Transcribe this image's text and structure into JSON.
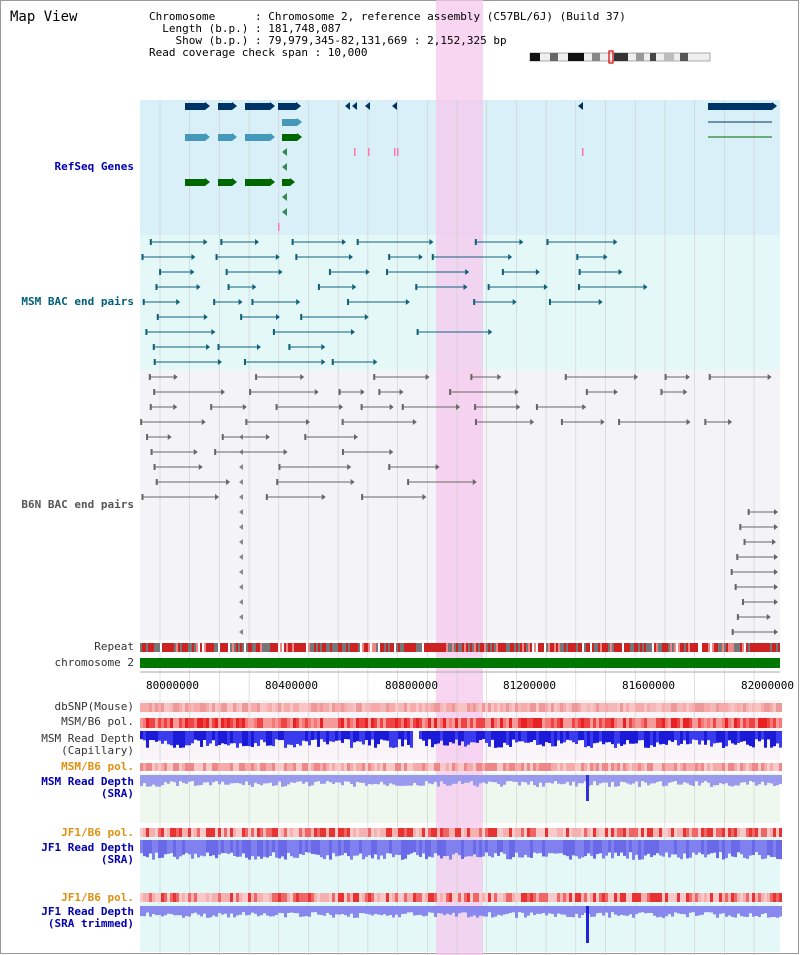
{
  "header": {
    "title": "Map View",
    "info_lines": [
      "Chromosome      : Chromosome 2, reference assembly (C57BL/6J) (Build 37)",
      "  Length (b.p.) : 181,748,087",
      "    Show (b.p.) : 79,979,345-82,131,669 : 2,152,325 bp",
      "Read coverage check span : 10,000"
    ]
  },
  "tracks": {
    "refseq": "RefSeq Genes",
    "msm_bac": "MSM BAC end pairs",
    "b6n_bac": "B6N BAC end pairs",
    "repeat": "Repeat",
    "chromosome": "chromosome 2",
    "dbsnp": "dbSNP(Mouse)",
    "msm_b6_pol": "MSM/B6 pol.",
    "msm_depth_cap": "MSM Read Depth\n(Capillary)",
    "msm_b6_pol2": "MSM/B6 pol.",
    "msm_depth_sra": "MSM Read Depth\n(SRA)",
    "jf1_b6_pol": "JF1/B6 pol.",
    "jf1_depth_sra": "JF1 Read Depth\n(SRA)",
    "jf1_b6_pol2": "JF1/B6 pol.",
    "jf1_depth_trim": "JF1 Read Depth\n(SRA trimmed)"
  },
  "axis_ticks": [
    "80000000",
    "80400000",
    "80800000",
    "81200000",
    "81600000",
    "82000000"
  ],
  "colors": {
    "refseq_bg": "#d9f0f8",
    "msm_bg": "#e4f8f8",
    "b6n_bg": "#f4f4f8",
    "highlight": "#f5c8ee",
    "chromosome": "#007700",
    "gene_dark": "#003366",
    "gene_light": "#4499bb",
    "gene_green": "#006600"
  }
}
